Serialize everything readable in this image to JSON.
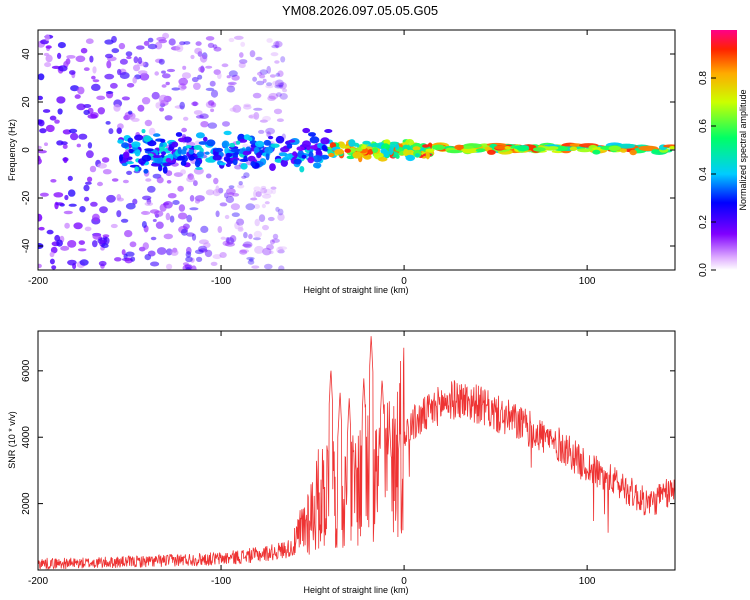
{
  "title": "YM08.2026.097.05.05.G05",
  "chart_data": [
    {
      "type": "heatmap",
      "xlabel": "Height of straight line (km)",
      "ylabel": "Frequency (Hz)",
      "xlim": [
        -200,
        148
      ],
      "ylim": [
        -50,
        50
      ],
      "xticks": [
        -200,
        -100,
        0,
        100
      ],
      "yticks": [
        -40,
        -20,
        0,
        20,
        40
      ],
      "description_regions": [
        {
          "x_range": [
            -200,
            -65
          ],
          "freq_range": [
            -50,
            48
          ],
          "amplitude": [
            0.05,
            0.25
          ],
          "pattern": "scattered noise"
        },
        {
          "x_range": [
            -155,
            -40
          ],
          "freq_range": [
            -12,
            10
          ],
          "amplitude": [
            0.15,
            0.45
          ],
          "pattern": "dense cluster"
        },
        {
          "x_range": [
            -40,
            15
          ],
          "freq_range": [
            -5,
            5
          ],
          "amplitude": [
            0.4,
            0.95
          ],
          "pattern": "oscillating band"
        },
        {
          "x_range": [
            15,
            148
          ],
          "freq_range": [
            -1.5,
            3
          ],
          "amplitude": [
            0.4,
            0.95
          ],
          "pattern": "stable line near 2 Hz"
        }
      ],
      "colorbar": {
        "label": "Normalized spectral amplitude",
        "range": [
          0,
          1
        ],
        "ticks": [
          0.0,
          0.2,
          0.4,
          0.6,
          0.8
        ]
      }
    },
    {
      "type": "line",
      "xlabel": "Height of straight line (km)",
      "ylabel": "SNR (10 * v/v)",
      "xlim": [
        -200,
        148
      ],
      "ylim": [
        0,
        7200
      ],
      "xticks": [
        -200,
        -100,
        0,
        100
      ],
      "yticks": [
        2000,
        4000,
        6000
      ],
      "series": [
        {
          "name": "SNR",
          "color": "#ee3333",
          "x": [
            -200,
            -180,
            -160,
            -140,
            -120,
            -100,
            -90,
            -80,
            -70,
            -60,
            -55,
            -50,
            -45,
            -40,
            -35,
            -30,
            -25,
            -20,
            -15,
            -10,
            -5,
            0,
            5,
            10,
            15,
            20,
            25,
            30,
            40,
            50,
            60,
            70,
            80,
            90,
            95,
            100,
            110,
            120,
            125,
            130,
            135,
            140,
            148
          ],
          "values": [
            200,
            200,
            230,
            260,
            310,
            340,
            400,
            460,
            550,
            700,
            1300,
            1800,
            2300,
            2600,
            2200,
            2300,
            2600,
            2900,
            2800,
            3000,
            3300,
            4200,
            4400,
            4600,
            4800,
            5000,
            5100,
            5150,
            5000,
            4700,
            4500,
            4200,
            3900,
            3600,
            3300,
            3100,
            2800,
            2500,
            2300,
            2100,
            2000,
            2200,
            2400
          ],
          "spikes": [
            {
              "x": -40,
              "y": 6100
            },
            {
              "x": -35,
              "y": 5400
            },
            {
              "x": -30,
              "y": 5200
            },
            {
              "x": -22,
              "y": 5800
            },
            {
              "x": -18,
              "y": 7100
            },
            {
              "x": -12,
              "y": 5800
            },
            {
              "x": -8,
              "y": 4500
            }
          ]
        }
      ]
    }
  ]
}
